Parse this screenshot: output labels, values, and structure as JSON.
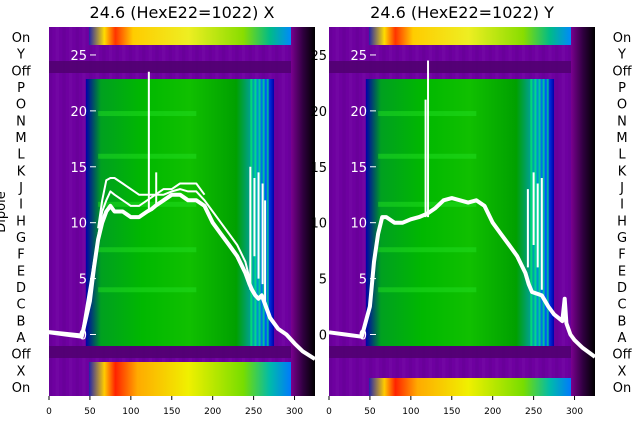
{
  "figure": {
    "y_axis_label": "Dipole"
  },
  "chart_data": [
    {
      "type": "heatmap",
      "title": "24.6 (HexE22=1022) X",
      "row_labels_left": [
        "On",
        "Y",
        "Off",
        "P",
        "O",
        "N",
        "M",
        "L",
        "K",
        "J",
        "I",
        "H",
        "G",
        "F",
        "E",
        "D",
        "C",
        "B",
        "A",
        "Off",
        "X",
        "On"
      ],
      "overlay_yticks": [
        0,
        5,
        10,
        15,
        20,
        25
      ],
      "xticks": [
        0,
        50,
        100,
        150,
        200,
        250,
        300
      ],
      "xlim": [
        0,
        325
      ],
      "overlay_ylim": [
        -5.5,
        27.5
      ],
      "grid": false,
      "overlay_series": [
        {
          "x": [
            0,
            20,
            40,
            50,
            55,
            60,
            65,
            70,
            75,
            80,
            90,
            100,
            110,
            120,
            125,
            130,
            140,
            150,
            160,
            170,
            180,
            190,
            200,
            210,
            220,
            230,
            240,
            245,
            248,
            252,
            256,
            260,
            265,
            270,
            280,
            290,
            300,
            310,
            325
          ],
          "y": [
            0.2,
            0,
            -0.2,
            3,
            6,
            8.5,
            10,
            11,
            11.5,
            11,
            11,
            10.5,
            10.5,
            11,
            11.2,
            11.5,
            12,
            12.5,
            12.5,
            12,
            12,
            11.5,
            10,
            9,
            8,
            7,
            5.5,
            4.5,
            4,
            3.5,
            3.2,
            3.5,
            2.5,
            1.5,
            0.5,
            0,
            -0.8,
            -1.5,
            -2.2
          ]
        },
        {
          "x": [
            0,
            40,
            55,
            65,
            70,
            75,
            80,
            90,
            100,
            110,
            120,
            130,
            140,
            150,
            160,
            170,
            180,
            190,
            200,
            210,
            220,
            230,
            240,
            245
          ],
          "y": [
            0.3,
            0,
            6.5,
            11,
            12,
            12.8,
            12.5,
            12,
            11.5,
            11.5,
            12,
            12.5,
            12.5,
            12.8,
            13,
            12.8,
            12.8,
            12,
            11,
            10,
            9,
            8,
            6.5,
            5
          ]
        },
        {
          "x": [
            60,
            65,
            70,
            75,
            80,
            90,
            100,
            110,
            120,
            130,
            140,
            150,
            160,
            170,
            180,
            190
          ],
          "y": [
            9.5,
            12,
            13.8,
            14,
            14,
            13.5,
            13,
            12.5,
            12.5,
            12.5,
            13,
            13,
            13.5,
            13.5,
            13.5,
            12.5
          ]
        }
      ],
      "spikes": [
        {
          "x": 122,
          "ymin": 11,
          "ymax": 23.5
        },
        {
          "x": 131,
          "ymin": 11.5,
          "ymax": 14.5
        },
        {
          "x": 246,
          "ymin": 4,
          "ymax": 15
        },
        {
          "x": 251,
          "ymin": 7,
          "ymax": 14
        },
        {
          "x": 256,
          "ymin": 5,
          "ymax": 14.5
        },
        {
          "x": 261,
          "ymin": 4.5,
          "ymax": 13.5
        },
        {
          "x": 264,
          "ymin": 3,
          "ymax": 12
        }
      ]
    },
    {
      "type": "heatmap",
      "title": "24.6 (HexE22=1022) Y",
      "row_labels_right": [
        "On",
        "Y",
        "Off",
        "P",
        "O",
        "N",
        "M",
        "L",
        "K",
        "J",
        "I",
        "H",
        "G",
        "F",
        "E",
        "D",
        "C",
        "B",
        "A",
        "Off",
        "X",
        "On"
      ],
      "overlay_yticks": [
        0,
        5,
        10,
        15,
        20,
        25
      ],
      "xticks": [
        0,
        50,
        100,
        150,
        200,
        250,
        300
      ],
      "xlim": [
        0,
        325
      ],
      "overlay_ylim": [
        -5.5,
        27.5
      ],
      "grid": false,
      "overlay_series": [
        {
          "x": [
            0,
            20,
            40,
            50,
            55,
            60,
            65,
            70,
            80,
            90,
            100,
            110,
            120,
            130,
            140,
            150,
            160,
            170,
            180,
            190,
            200,
            210,
            220,
            230,
            240,
            244,
            248,
            260,
            268,
            275,
            280,
            285,
            288,
            290,
            295,
            300,
            310,
            325
          ],
          "y": [
            0.2,
            0,
            -0.2,
            2.5,
            6.5,
            9,
            10.5,
            10.5,
            10,
            10,
            10.3,
            10.5,
            10.8,
            11.3,
            12,
            12.2,
            12,
            11.8,
            12,
            11.5,
            10,
            9,
            8,
            7,
            5.5,
            4.5,
            3.8,
            3.5,
            2.5,
            1.8,
            1.5,
            1.2,
            3.2,
            1,
            0,
            -0.5,
            -1.2,
            -2
          ]
        }
      ],
      "spikes": [
        {
          "x": 118,
          "ymin": 10.5,
          "ymax": 21
        },
        {
          "x": 121,
          "ymin": 10.5,
          "ymax": 24.5
        },
        {
          "x": 243,
          "ymin": 6,
          "ymax": 13
        },
        {
          "x": 250,
          "ymin": 8,
          "ymax": 14.5
        },
        {
          "x": 255,
          "ymin": 6,
          "ymax": 13.5
        },
        {
          "x": 260,
          "ymin": 4,
          "ymax": 14
        }
      ]
    }
  ]
}
